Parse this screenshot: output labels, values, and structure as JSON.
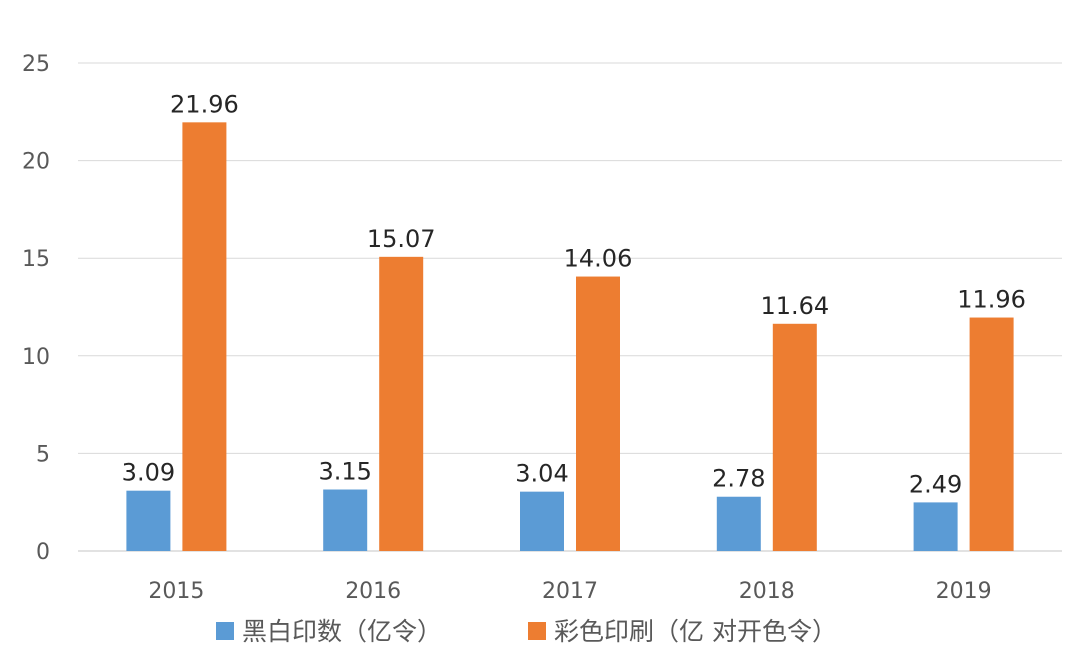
{
  "chart_data": {
    "type": "bar",
    "categories": [
      "2015",
      "2016",
      "2017",
      "2018",
      "2019"
    ],
    "series": [
      {
        "name": "黑白印数（亿令）",
        "color": "#5b9bd5",
        "values": [
          3.09,
          3.15,
          3.04,
          2.78,
          2.49
        ]
      },
      {
        "name": "彩色印刷（亿 对开色令）",
        "color": "#ed7d31",
        "values": [
          21.96,
          15.07,
          14.06,
          11.64,
          11.96
        ]
      }
    ],
    "data_labels": [
      [
        "3.09",
        "3.15",
        "3.04",
        "2.78",
        "2.49"
      ],
      [
        "21.96",
        "15.07",
        "14.06",
        "11.64",
        "11.96"
      ]
    ],
    "yticks": [
      "0",
      "5",
      "10",
      "15",
      "20",
      "25"
    ],
    "ylim": [
      0,
      25
    ],
    "grid": true,
    "legend_position": "bottom"
  }
}
